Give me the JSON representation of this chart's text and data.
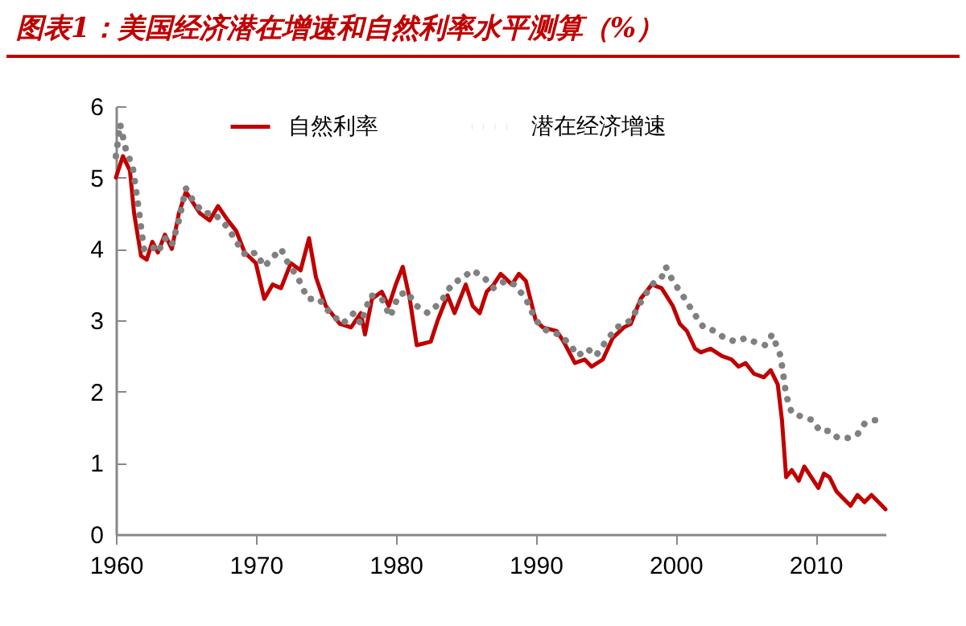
{
  "chart_data": {
    "type": "line",
    "title": "图表1：美国经济潜在增速和自然利率水平测算（%）",
    "xlim": [
      1960,
      2015
    ],
    "xticks": [
      1960,
      1970,
      1980,
      1990,
      2000,
      2010
    ],
    "ylim": [
      0,
      6
    ],
    "yticks": [
      0,
      1,
      2,
      3,
      4,
      5,
      6
    ],
    "grid": false,
    "legend": "top",
    "marker": "none",
    "series": [
      {
        "name": "自然利率",
        "color": "#c00000",
        "line_style": "solid",
        "x": [
          1960,
          1960.5,
          1961,
          1961.3,
          1961.8,
          1962.2,
          1962.6,
          1963,
          1963.5,
          1964,
          1964.5,
          1965,
          1965.5,
          1966,
          1966.7,
          1967.3,
          1968,
          1968.6,
          1969.2,
          1970,
          1970.6,
          1971.2,
          1971.8,
          1972.5,
          1973.2,
          1973.8,
          1974.3,
          1975,
          1976,
          1976.8,
          1977.5,
          1977.8,
          1978.3,
          1979,
          1979.5,
          1980,
          1980.5,
          1981,
          1981.5,
          1982.5,
          1983,
          1983.7,
          1984.2,
          1985,
          1985.5,
          1986,
          1986.5,
          1987,
          1987.5,
          1988.3,
          1988.8,
          1989.3,
          1990,
          1990.5,
          1991.5,
          1992,
          1992.8,
          1993.5,
          1994,
          1994.8,
          1995.5,
          1996.3,
          1996.8,
          1997.5,
          1998.3,
          1999,
          1999.8,
          2000.3,
          2000.8,
          2001.4,
          2001.8,
          2002.5,
          2003.3,
          2004,
          2004.5,
          2005,
          2005.6,
          2006.3,
          2006.8,
          2007.3,
          2007.6,
          2007.9,
          2008.3,
          2008.8,
          2009.2,
          2009.7,
          2010.2,
          2010.6,
          2011,
          2011.5,
          2012,
          2012.5,
          2013,
          2013.5,
          2014,
          2014.5,
          2015
        ],
        "values": [
          5.0,
          5.3,
          5.1,
          4.5,
          3.9,
          3.85,
          4.1,
          3.95,
          4.2,
          4.0,
          4.5,
          4.8,
          4.65,
          4.5,
          4.4,
          4.6,
          4.4,
          4.25,
          3.95,
          3.8,
          3.3,
          3.5,
          3.45,
          3.8,
          3.7,
          4.15,
          3.6,
          3.2,
          2.95,
          2.9,
          3.1,
          2.8,
          3.3,
          3.4,
          3.2,
          3.5,
          3.75,
          3.3,
          2.65,
          2.7,
          3.0,
          3.35,
          3.1,
          3.5,
          3.2,
          3.1,
          3.4,
          3.5,
          3.65,
          3.5,
          3.65,
          3.55,
          3.0,
          2.9,
          2.85,
          2.7,
          2.4,
          2.45,
          2.35,
          2.45,
          2.75,
          2.9,
          2.95,
          3.3,
          3.5,
          3.45,
          3.2,
          2.95,
          2.85,
          2.6,
          2.55,
          2.6,
          2.5,
          2.45,
          2.35,
          2.4,
          2.25,
          2.2,
          2.3,
          2.1,
          1.6,
          0.8,
          0.9,
          0.75,
          0.95,
          0.8,
          0.65,
          0.85,
          0.8,
          0.6,
          0.5,
          0.4,
          0.55,
          0.45,
          0.55,
          0.45,
          0.35
        ]
      },
      {
        "name": "潜在经济增速",
        "color": "#808080",
        "line_style": "dotted",
        "x": [
          1960,
          1960.3,
          1960.7,
          1961.2,
          1961.6,
          1962,
          1962.5,
          1963,
          1963.5,
          1964,
          1964.5,
          1965,
          1965.6,
          1966.3,
          1967,
          1967.5,
          1968,
          1968.6,
          1969.3,
          1970,
          1970.6,
          1971.3,
          1971.8,
          1972.3,
          1973,
          1973.7,
          1974.5,
          1975.3,
          1976.2,
          1977,
          1977.5,
          1978.2,
          1979,
          1979.6,
          1980.2,
          1980.8,
          1981.5,
          1982.3,
          1983.2,
          1984,
          1984.8,
          1985.5,
          1986.3,
          1987,
          1987.8,
          1988.5,
          1989.3,
          1990,
          1990.8,
          1991.7,
          1992.5,
          1993,
          1993.7,
          1994.3,
          1995,
          1995.8,
          1996.8,
          1997.5,
          1998.3,
          1999,
          1999.3,
          1999.8,
          2000.5,
          2001.3,
          2002,
          2002.8,
          2003.5,
          2004.3,
          2005,
          2005.6,
          2006.4,
          2006.9,
          2007.5,
          2007.9,
          2008.3,
          2009,
          2009.8,
          2010.3,
          2011,
          2011.6,
          2012.3,
          2013,
          2013.5,
          2014.2,
          2015
        ],
        "values": [
          5.3,
          5.75,
          5.4,
          5.15,
          4.6,
          4.0,
          4.05,
          3.95,
          4.15,
          4.05,
          4.4,
          4.85,
          4.65,
          4.5,
          4.5,
          4.4,
          4.3,
          4.1,
          3.9,
          3.95,
          3.75,
          3.9,
          4.0,
          3.8,
          3.6,
          3.3,
          3.3,
          3.1,
          2.95,
          3.1,
          2.95,
          3.35,
          3.3,
          3.05,
          3.35,
          3.4,
          3.2,
          3.1,
          3.25,
          3.5,
          3.6,
          3.7,
          3.6,
          3.45,
          3.55,
          3.5,
          3.3,
          3.0,
          2.85,
          2.8,
          2.65,
          2.5,
          2.6,
          2.5,
          2.7,
          2.9,
          3.0,
          3.25,
          3.5,
          3.6,
          3.75,
          3.55,
          3.35,
          3.1,
          2.9,
          2.85,
          2.75,
          2.7,
          2.75,
          2.7,
          2.65,
          2.8,
          2.5,
          1.95,
          1.7,
          1.65,
          1.6,
          1.45,
          1.45,
          1.35,
          1.35,
          1.4,
          1.55,
          1.6,
          1.6
        ]
      }
    ]
  }
}
